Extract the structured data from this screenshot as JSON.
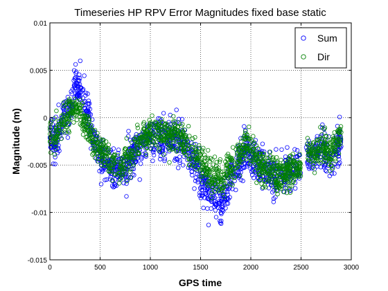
{
  "chart_data": {
    "type": "scatter",
    "title": "Timeseries HP RPV Error Magnitudes fixed base static",
    "xlabel": "GPS time",
    "ylabel": "Magnitude (m)",
    "xlim": [
      0,
      3000
    ],
    "ylim": [
      -0.015,
      0.01
    ],
    "xticks": [
      0,
      500,
      1000,
      1500,
      2000,
      2500,
      3000
    ],
    "xtick_labels": [
      "0",
      "500",
      "1000",
      "1500",
      "2000",
      "2500",
      "3000"
    ],
    "yticks": [
      0.01,
      0.005,
      0,
      -0.005,
      -0.01,
      -0.015
    ],
    "ytick_labels": [
      "0.01",
      "0.005",
      "0",
      "-0.005",
      "-0.01",
      "-0.015"
    ],
    "grid": true,
    "legend_position": "top-right",
    "marker": "open-circle",
    "series": [
      {
        "name": "Sum",
        "color": "#0000ff",
        "trend": [
          [
            0,
            -0.002
          ],
          [
            50,
            -0.0025
          ],
          [
            100,
            -0.001
          ],
          [
            150,
            0.0005
          ],
          [
            200,
            0.001
          ],
          [
            250,
            0.003
          ],
          [
            280,
            0.0035
          ],
          [
            320,
            0.0025
          ],
          [
            360,
            0.001
          ],
          [
            400,
            -0.001
          ],
          [
            450,
            -0.003
          ],
          [
            500,
            -0.004
          ],
          [
            550,
            -0.0045
          ],
          [
            600,
            -0.005
          ],
          [
            650,
            -0.0055
          ],
          [
            700,
            -0.0055
          ],
          [
            750,
            -0.005
          ],
          [
            800,
            -0.004
          ],
          [
            850,
            -0.0035
          ],
          [
            900,
            -0.003
          ],
          [
            950,
            -0.0025
          ],
          [
            1000,
            -0.002
          ],
          [
            1050,
            -0.0015
          ],
          [
            1100,
            -0.002
          ],
          [
            1150,
            -0.0025
          ],
          [
            1200,
            -0.0025
          ],
          [
            1250,
            -0.002
          ],
          [
            1300,
            -0.0025
          ],
          [
            1350,
            -0.003
          ],
          [
            1400,
            -0.004
          ],
          [
            1450,
            -0.005
          ],
          [
            1500,
            -0.0065
          ],
          [
            1550,
            -0.0075
          ],
          [
            1600,
            -0.008
          ],
          [
            1650,
            -0.0085
          ],
          [
            1700,
            -0.0095
          ],
          [
            1750,
            -0.008
          ],
          [
            1800,
            -0.0065
          ],
          [
            1850,
            -0.0055
          ],
          [
            1900,
            -0.005
          ],
          [
            1950,
            -0.003
          ],
          [
            2000,
            -0.004
          ],
          [
            2050,
            -0.005
          ],
          [
            2100,
            -0.0055
          ],
          [
            2150,
            -0.0055
          ],
          [
            2200,
            -0.006
          ],
          [
            2250,
            -0.0065
          ],
          [
            2300,
            -0.0065
          ],
          [
            2350,
            -0.006
          ],
          [
            2400,
            -0.0055
          ],
          [
            2450,
            -0.005
          ],
          [
            2500,
            -0.0055
          ]
        ],
        "trend2": [
          [
            2550,
            -0.0035
          ],
          [
            2600,
            -0.004
          ],
          [
            2650,
            -0.0035
          ],
          [
            2700,
            -0.003
          ],
          [
            2750,
            -0.004
          ],
          [
            2800,
            -0.0045
          ],
          [
            2850,
            -0.003
          ],
          [
            2900,
            -0.002
          ]
        ],
        "spread": 0.0018,
        "count": 1400
      },
      {
        "name": "Dir",
        "color": "#008000",
        "trend": [
          [
            0,
            -0.002
          ],
          [
            50,
            -0.002
          ],
          [
            100,
            -0.0015
          ],
          [
            150,
            0.0
          ],
          [
            200,
            0.0005
          ],
          [
            250,
            0.001
          ],
          [
            300,
            0.0005
          ],
          [
            350,
            -0.0005
          ],
          [
            400,
            -0.0015
          ],
          [
            450,
            -0.003
          ],
          [
            500,
            -0.0035
          ],
          [
            550,
            -0.004
          ],
          [
            600,
            -0.0045
          ],
          [
            650,
            -0.005
          ],
          [
            700,
            -0.005
          ],
          [
            750,
            -0.0045
          ],
          [
            800,
            -0.004
          ],
          [
            850,
            -0.003
          ],
          [
            900,
            -0.0025
          ],
          [
            950,
            -0.002
          ],
          [
            1000,
            -0.0015
          ],
          [
            1050,
            -0.001
          ],
          [
            1100,
            -0.0015
          ],
          [
            1150,
            -0.002
          ],
          [
            1200,
            -0.002
          ],
          [
            1250,
            -0.0015
          ],
          [
            1300,
            -0.002
          ],
          [
            1350,
            -0.0025
          ],
          [
            1400,
            -0.0035
          ],
          [
            1450,
            -0.004
          ],
          [
            1500,
            -0.0045
          ],
          [
            1550,
            -0.0055
          ],
          [
            1600,
            -0.006
          ],
          [
            1650,
            -0.006
          ],
          [
            1700,
            -0.0065
          ],
          [
            1750,
            -0.006
          ],
          [
            1800,
            -0.005
          ],
          [
            1850,
            -0.0045
          ],
          [
            1900,
            -0.004
          ],
          [
            1950,
            -0.0025
          ],
          [
            2000,
            -0.0035
          ],
          [
            2050,
            -0.0045
          ],
          [
            2100,
            -0.005
          ],
          [
            2150,
            -0.0055
          ],
          [
            2200,
            -0.0055
          ],
          [
            2250,
            -0.006
          ],
          [
            2300,
            -0.006
          ],
          [
            2350,
            -0.006
          ],
          [
            2400,
            -0.0055
          ],
          [
            2450,
            -0.005
          ],
          [
            2500,
            -0.0055
          ]
        ],
        "trend2": [
          [
            2550,
            -0.0035
          ],
          [
            2600,
            -0.004
          ],
          [
            2650,
            -0.0035
          ],
          [
            2700,
            -0.003
          ],
          [
            2750,
            -0.0035
          ],
          [
            2800,
            -0.004
          ],
          [
            2850,
            -0.0025
          ],
          [
            2900,
            -0.0015
          ]
        ],
        "spread": 0.0014,
        "count": 1400
      }
    ]
  }
}
